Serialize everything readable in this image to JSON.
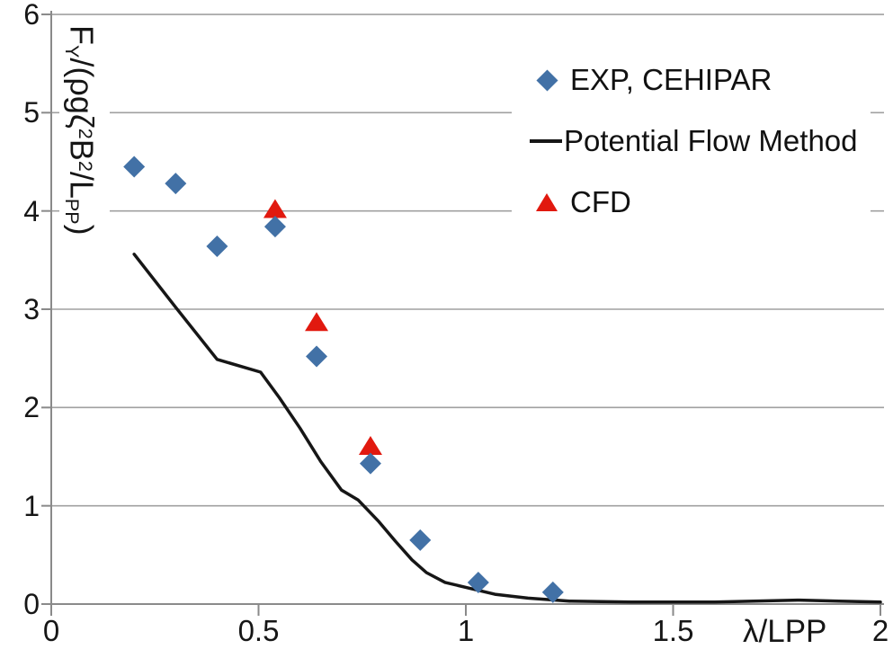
{
  "chart_data": {
    "type": "scatter",
    "title": "",
    "xlabel": "λ/LPP",
    "ylabel": "FY/(ρgζ²B²/LPP)",
    "ylabel_segments": [
      {
        "t": "F",
        "m": "n"
      },
      {
        "t": "Y",
        "m": "sub"
      },
      {
        "t": "/(ρgζ",
        "m": "n"
      },
      {
        "t": "2",
        "m": "sup"
      },
      {
        "t": "B",
        "m": "n"
      },
      {
        "t": "2",
        "m": "sup"
      },
      {
        "t": "/L",
        "m": "n"
      },
      {
        "t": "PP",
        "m": "sub"
      },
      {
        "t": ")",
        "m": "n"
      }
    ],
    "xlim": [
      0,
      2
    ],
    "ylim": [
      0,
      6
    ],
    "grid": true,
    "legend_position": "top-right",
    "x_ticks": [
      0,
      0.5,
      1,
      1.5,
      2
    ],
    "x_tick_labels": [
      "0",
      "0.5",
      "1",
      "1.5",
      "2"
    ],
    "y_ticks": [
      0,
      1,
      2,
      3,
      4,
      5,
      6
    ],
    "y_tick_labels": [
      "0",
      "1",
      "2",
      "3",
      "4",
      "5",
      "6"
    ],
    "series": [
      {
        "name": "EXP, CEHIPAR",
        "type": "scatter",
        "marker": "diamond",
        "color": "#4271a6",
        "points": [
          [
            0.2,
            4.45
          ],
          [
            0.3,
            4.28
          ],
          [
            0.4,
            3.64
          ],
          [
            0.54,
            3.84
          ],
          [
            0.64,
            2.52
          ],
          [
            0.77,
            1.43
          ],
          [
            0.89,
            0.65
          ],
          [
            1.03,
            0.22
          ],
          [
            1.21,
            0.12
          ]
        ]
      },
      {
        "name": "Potential Flow Method",
        "type": "line",
        "color": "#161616",
        "points": [
          [
            0.2,
            3.56
          ],
          [
            0.3,
            3.02
          ],
          [
            0.4,
            2.49
          ],
          [
            0.505,
            2.36
          ],
          [
            0.55,
            2.1
          ],
          [
            0.6,
            1.79
          ],
          [
            0.65,
            1.45
          ],
          [
            0.7,
            1.16
          ],
          [
            0.74,
            1.06
          ],
          [
            0.79,
            0.84
          ],
          [
            0.83,
            0.64
          ],
          [
            0.87,
            0.45
          ],
          [
            0.905,
            0.32
          ],
          [
            0.95,
            0.22
          ],
          [
            1.0,
            0.17
          ],
          [
            1.07,
            0.1
          ],
          [
            1.15,
            0.06
          ],
          [
            1.25,
            0.03
          ],
          [
            1.4,
            0.02
          ],
          [
            1.6,
            0.02
          ],
          [
            1.8,
            0.04
          ],
          [
            1.9,
            0.03
          ],
          [
            2.0,
            0.02
          ]
        ]
      },
      {
        "name": "CFD",
        "type": "scatter",
        "marker": "triangle",
        "color": "#e1190f",
        "points": [
          [
            0.54,
            4.02
          ],
          [
            0.64,
            2.87
          ],
          [
            0.77,
            1.61
          ]
        ]
      }
    ]
  },
  "colors": {
    "background": "#ffffff",
    "gridline": "#a0a0a0",
    "axis": "#8a8a8a",
    "text": "#161616",
    "exp_marker": "#4271a6",
    "cfd_marker": "#e1190f",
    "potential_flow_line": "#161616"
  }
}
